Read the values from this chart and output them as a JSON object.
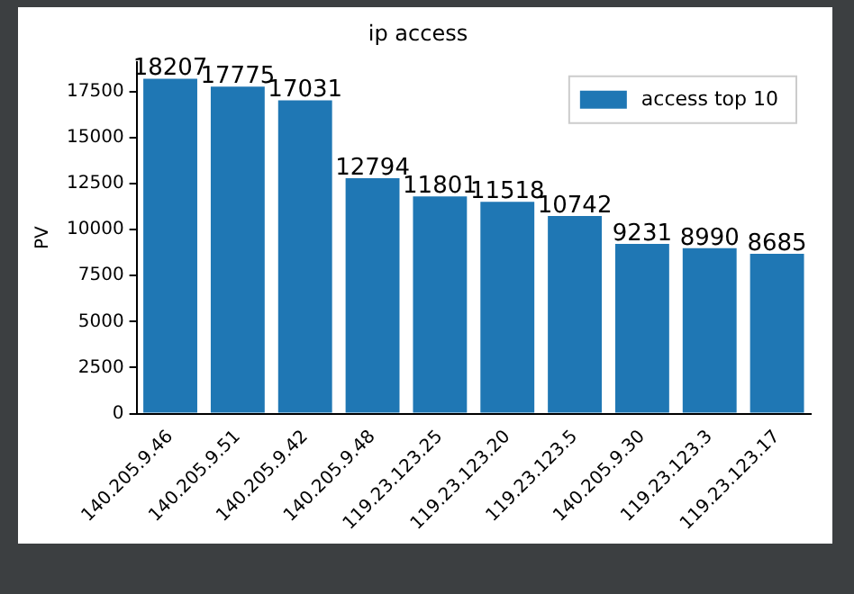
{
  "chart_data": {
    "type": "bar",
    "title": "ip access",
    "ylabel": "PV",
    "categories": [
      "140.205.9.46",
      "140.205.9.51",
      "140.205.9.42",
      "140.205.9.48",
      "119.23.123.25",
      "119.23.123.20",
      "119.23.123.5",
      "140.205.9.30",
      "119.23.123.3",
      "119.23.123.17"
    ],
    "series": [
      {
        "name": "access top 10",
        "color": "#1f77b4",
        "values": [
          18207,
          17775,
          17031,
          12794,
          11801,
          11518,
          10742,
          9231,
          8990,
          8685
        ]
      }
    ],
    "ylim": [
      0,
      19117
    ],
    "yticks": [
      0,
      2500,
      5000,
      7500,
      10000,
      12500,
      15000,
      17500
    ],
    "data_labels": true,
    "legend": "top right",
    "grid": false
  }
}
